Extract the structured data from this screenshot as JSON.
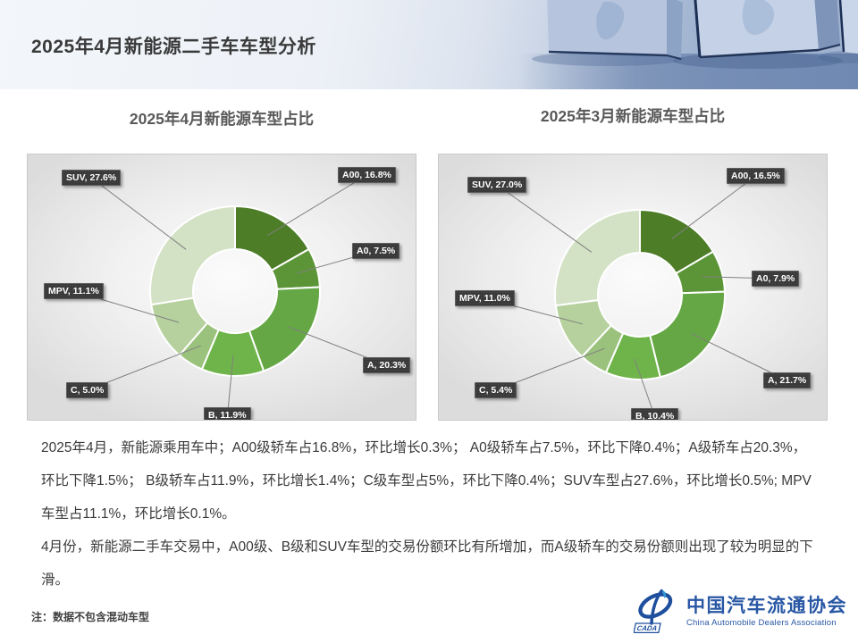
{
  "header": {
    "title": "2025年4月新能源二手车车型分析"
  },
  "chart_data": [
    {
      "type": "pie",
      "subtype": "donut",
      "title": "2025年4月新能源车型占比",
      "categories": [
        "A00",
        "A0",
        "A",
        "B",
        "C",
        "MPV",
        "SUV"
      ],
      "values": [
        16.8,
        7.5,
        20.3,
        11.9,
        5.0,
        11.1,
        27.6
      ],
      "labels": [
        "A00, 16.8%",
        "A0, 7.5%",
        "A, 20.3%",
        "B, 11.9%",
        "C, 5.0%",
        "MPV, 11.1%",
        "SUV, 27.6%"
      ],
      "colors": [
        "#4e7d28",
        "#5c9538",
        "#65a744",
        "#6fb44a",
        "#9bc27d",
        "#b6d19e",
        "#d3e1c5"
      ],
      "unit": "percent",
      "legend": "none",
      "label_style": "dark-callout-with-leader-lines",
      "label_box_color": "#3a3a3a",
      "leader_line_color": "#808080"
    },
    {
      "type": "pie",
      "subtype": "donut",
      "title": "2025年3月新能源车型占比",
      "categories": [
        "A00",
        "A0",
        "A",
        "B",
        "C",
        "MPV",
        "SUV"
      ],
      "values": [
        16.5,
        7.9,
        21.7,
        10.4,
        5.4,
        11.0,
        27.0
      ],
      "labels": [
        "A00, 16.5%",
        "A0, 7.9%",
        "A, 21.7%",
        "B, 10.4%",
        "C, 5.4%",
        "MPV, 11.0%",
        "SUV, 27.0%"
      ],
      "colors": [
        "#4e7d28",
        "#5c9538",
        "#65a744",
        "#6fb44a",
        "#9bc27d",
        "#b6d19e",
        "#d3e1c5"
      ],
      "unit": "percent",
      "legend": "none",
      "label_style": "dark-callout-with-leader-lines",
      "label_box_color": "#3a3a3a",
      "leader_line_color": "#808080"
    }
  ],
  "body": {
    "paragraphs": [
      "2025年4月，新能源乘用车中；A00级轿车占16.8%，环比增长0.3%； A0级轿车占7.5%，环比下降0.4%；A级轿车占20.3%，环比下降1.5%； B级轿车占11.9%，环比增长1.4%；C级车型占5%，环比下降0.4%；SUV车型占27.6%，环比增长0.5%; MPV车型占11.1%，环比增长0.1%。",
      "4月份，新能源二手车交易中，A00级、B级和SUV车型的交易份额环比有所增加，而A级轿车的交易份额则出现了较为明显的下滑。"
    ]
  },
  "note": "注：数据不包含混动车型",
  "logo": {
    "badge": "CADA",
    "name_cn": "中国汽车流通协会",
    "name_en": "China Automobile Dealers Association",
    "color": "#2857a4"
  }
}
